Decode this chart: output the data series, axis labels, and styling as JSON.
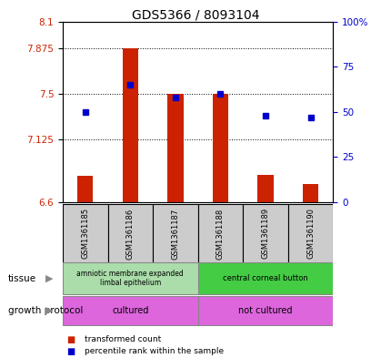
{
  "title": "GDS5366 / 8093104",
  "samples": [
    "GSM1361185",
    "GSM1361186",
    "GSM1361187",
    "GSM1361188",
    "GSM1361189",
    "GSM1361190"
  ],
  "bar_values": [
    6.82,
    7.875,
    7.5,
    7.5,
    6.83,
    6.75
  ],
  "percentile_values": [
    50,
    65,
    58,
    60,
    48,
    47
  ],
  "ylim_left": [
    6.6,
    8.1
  ],
  "ylim_right": [
    0,
    100
  ],
  "yticks_left": [
    6.6,
    7.125,
    7.5,
    7.875,
    8.1
  ],
  "ytick_labels_left": [
    "6.6",
    "7.125",
    "7.5",
    "7.875",
    "8.1"
  ],
  "yticks_right": [
    0,
    25,
    50,
    75,
    100
  ],
  "ytick_labels_right": [
    "0",
    "25",
    "50",
    "75",
    "100%"
  ],
  "hlines": [
    7.125,
    7.5,
    7.875
  ],
  "bar_color": "#cc2200",
  "dot_color": "#0000cc",
  "bar_bottom": 6.6,
  "tissue_labels": [
    "amniotic membrane expanded\nlimbal epithelium",
    "central corneal button"
  ],
  "tissue_colors": [
    "#aaddaa",
    "#44cc44"
  ],
  "growth_protocol_labels": [
    "cultured",
    "not cultured"
  ],
  "growth_protocol_color": "#dd66dd",
  "legend_items": [
    "transformed count",
    "percentile rank within the sample"
  ],
  "legend_colors": [
    "#cc2200",
    "#0000cc"
  ],
  "left_tick_color": "#cc2200",
  "right_tick_color": "#0000cc",
  "sample_box_color": "#cccccc",
  "background_color": "#ffffff",
  "label_row1": "tissue",
  "label_row2": "growth protocol"
}
